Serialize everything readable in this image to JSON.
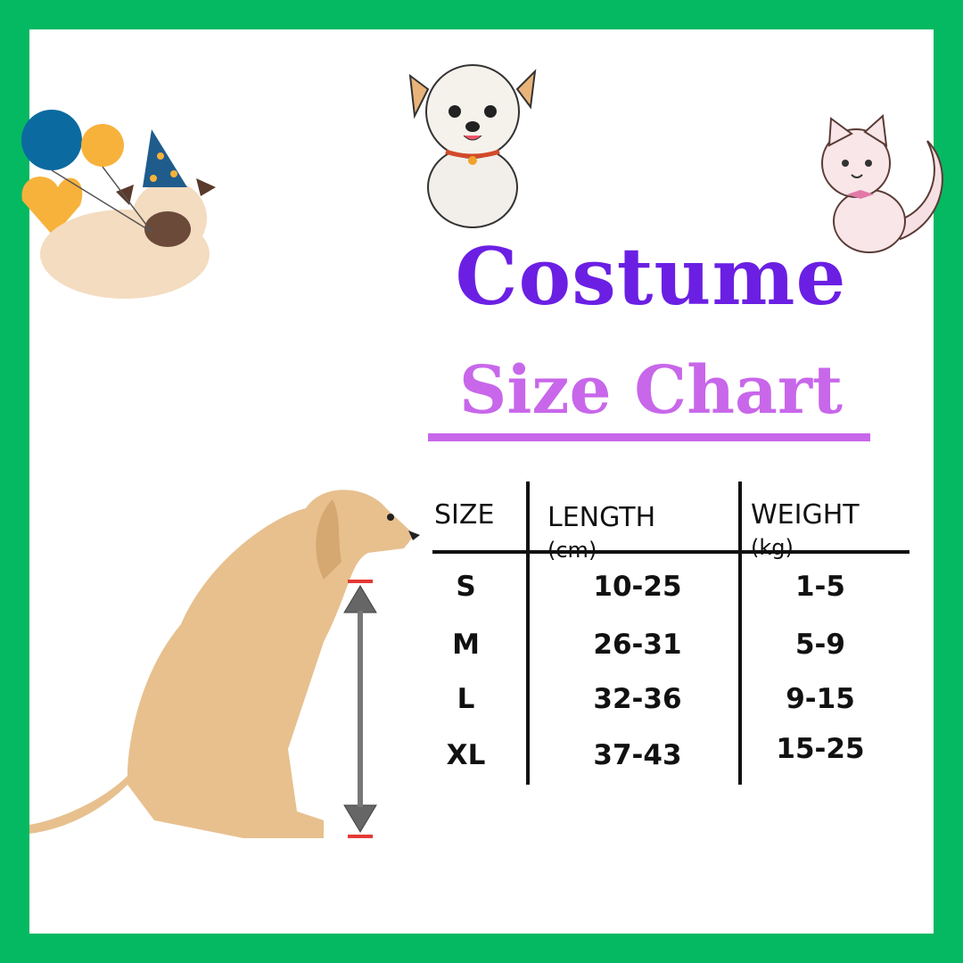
{
  "title": {
    "line1": "Costume",
    "line2": "Size Chart"
  },
  "colors": {
    "border": "#05b862",
    "title": "#6b1fe3",
    "subtitle": "#c867ea"
  },
  "table": {
    "headers": {
      "size": "SIZE",
      "length": "LENGTH",
      "length_unit": "(cm)",
      "weight": "WEIGHT",
      "weight_unit": "(kg)"
    },
    "rows": [
      {
        "size": "S",
        "length": "10-25",
        "weight": "1-5"
      },
      {
        "size": "M",
        "length": "26-31",
        "weight": "5-9"
      },
      {
        "size": "L",
        "length": "32-36",
        "weight": "9-15"
      },
      {
        "size": "XL",
        "length": "37-43",
        "weight": "15-25"
      }
    ]
  },
  "illustrations": [
    "party-pug-with-balloons",
    "cartoon-puppy",
    "cartoon-kitten",
    "sitting-labrador",
    "measurement-arrow"
  ]
}
